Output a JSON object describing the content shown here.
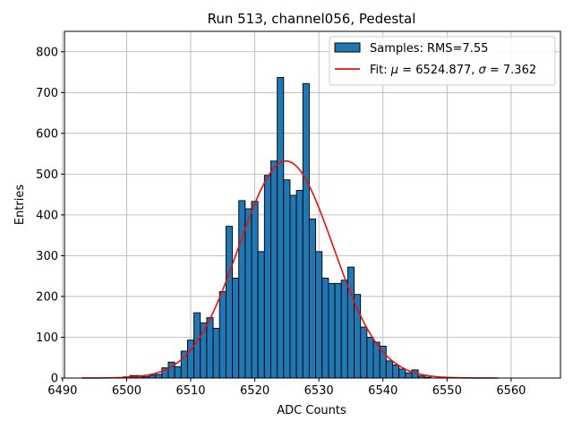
{
  "chart_data": {
    "type": "bar",
    "title": "Run 513, channel056, Pedestal",
    "xlabel": "ADC Counts",
    "ylabel": "Entries",
    "xlim": [
      6490.3,
      6567.7
    ],
    "ylim": [
      0,
      850
    ],
    "grid": true,
    "bin_width": 1,
    "bins": [
      [
        6500,
        3
      ],
      [
        6501,
        6
      ],
      [
        6502,
        6
      ],
      [
        6503,
        3
      ],
      [
        6504,
        7
      ],
      [
        6505,
        9
      ],
      [
        6506,
        25
      ],
      [
        6507,
        39
      ],
      [
        6508,
        28
      ],
      [
        6509,
        66
      ],
      [
        6510,
        93
      ],
      [
        6511,
        160
      ],
      [
        6512,
        135
      ],
      [
        6513,
        148
      ],
      [
        6514,
        122
      ],
      [
        6515,
        212
      ],
      [
        6516,
        372
      ],
      [
        6517,
        245
      ],
      [
        6518,
        435
      ],
      [
        6519,
        415
      ],
      [
        6520,
        433
      ],
      [
        6521,
        310
      ],
      [
        6522,
        497
      ],
      [
        6523,
        532
      ],
      [
        6524,
        737
      ],
      [
        6525,
        486
      ],
      [
        6526,
        448
      ],
      [
        6527,
        460
      ],
      [
        6528,
        722
      ],
      [
        6529,
        390
      ],
      [
        6530,
        310
      ],
      [
        6531,
        245
      ],
      [
        6532,
        232
      ],
      [
        6533,
        232
      ],
      [
        6534,
        240
      ],
      [
        6535,
        272
      ],
      [
        6536,
        205
      ],
      [
        6537,
        125
      ],
      [
        6538,
        100
      ],
      [
        6539,
        88
      ],
      [
        6540,
        78
      ],
      [
        6541,
        42
      ],
      [
        6542,
        32
      ],
      [
        6543,
        22
      ],
      [
        6544,
        13
      ],
      [
        6545,
        20
      ],
      [
        6546,
        5
      ],
      [
        6547,
        2
      ]
    ],
    "fit": {
      "mu": 6524.877,
      "sigma": 7.362,
      "amplitude": 532,
      "x_range": [
        6493,
        6558
      ]
    },
    "xticks": [
      6490,
      6500,
      6510,
      6520,
      6530,
      6540,
      6550,
      6560
    ],
    "yticks": [
      0,
      100,
      200,
      300,
      400,
      500,
      600,
      700,
      800
    ],
    "legend": {
      "position": "top-right",
      "entries": [
        {
          "label": "Samples: RMS=7.55"
        },
        {
          "label_prefix": "Fit: ",
          "mu_symbol": "μ",
          "mu_text": " = 6524.877, ",
          "sigma_symbol": "σ",
          "sigma_text": " = 7.362"
        }
      ]
    },
    "colors": {
      "bar_fill": "#1f77b4",
      "bar_edge": "#000000",
      "fit_line": "#e8100c"
    }
  }
}
